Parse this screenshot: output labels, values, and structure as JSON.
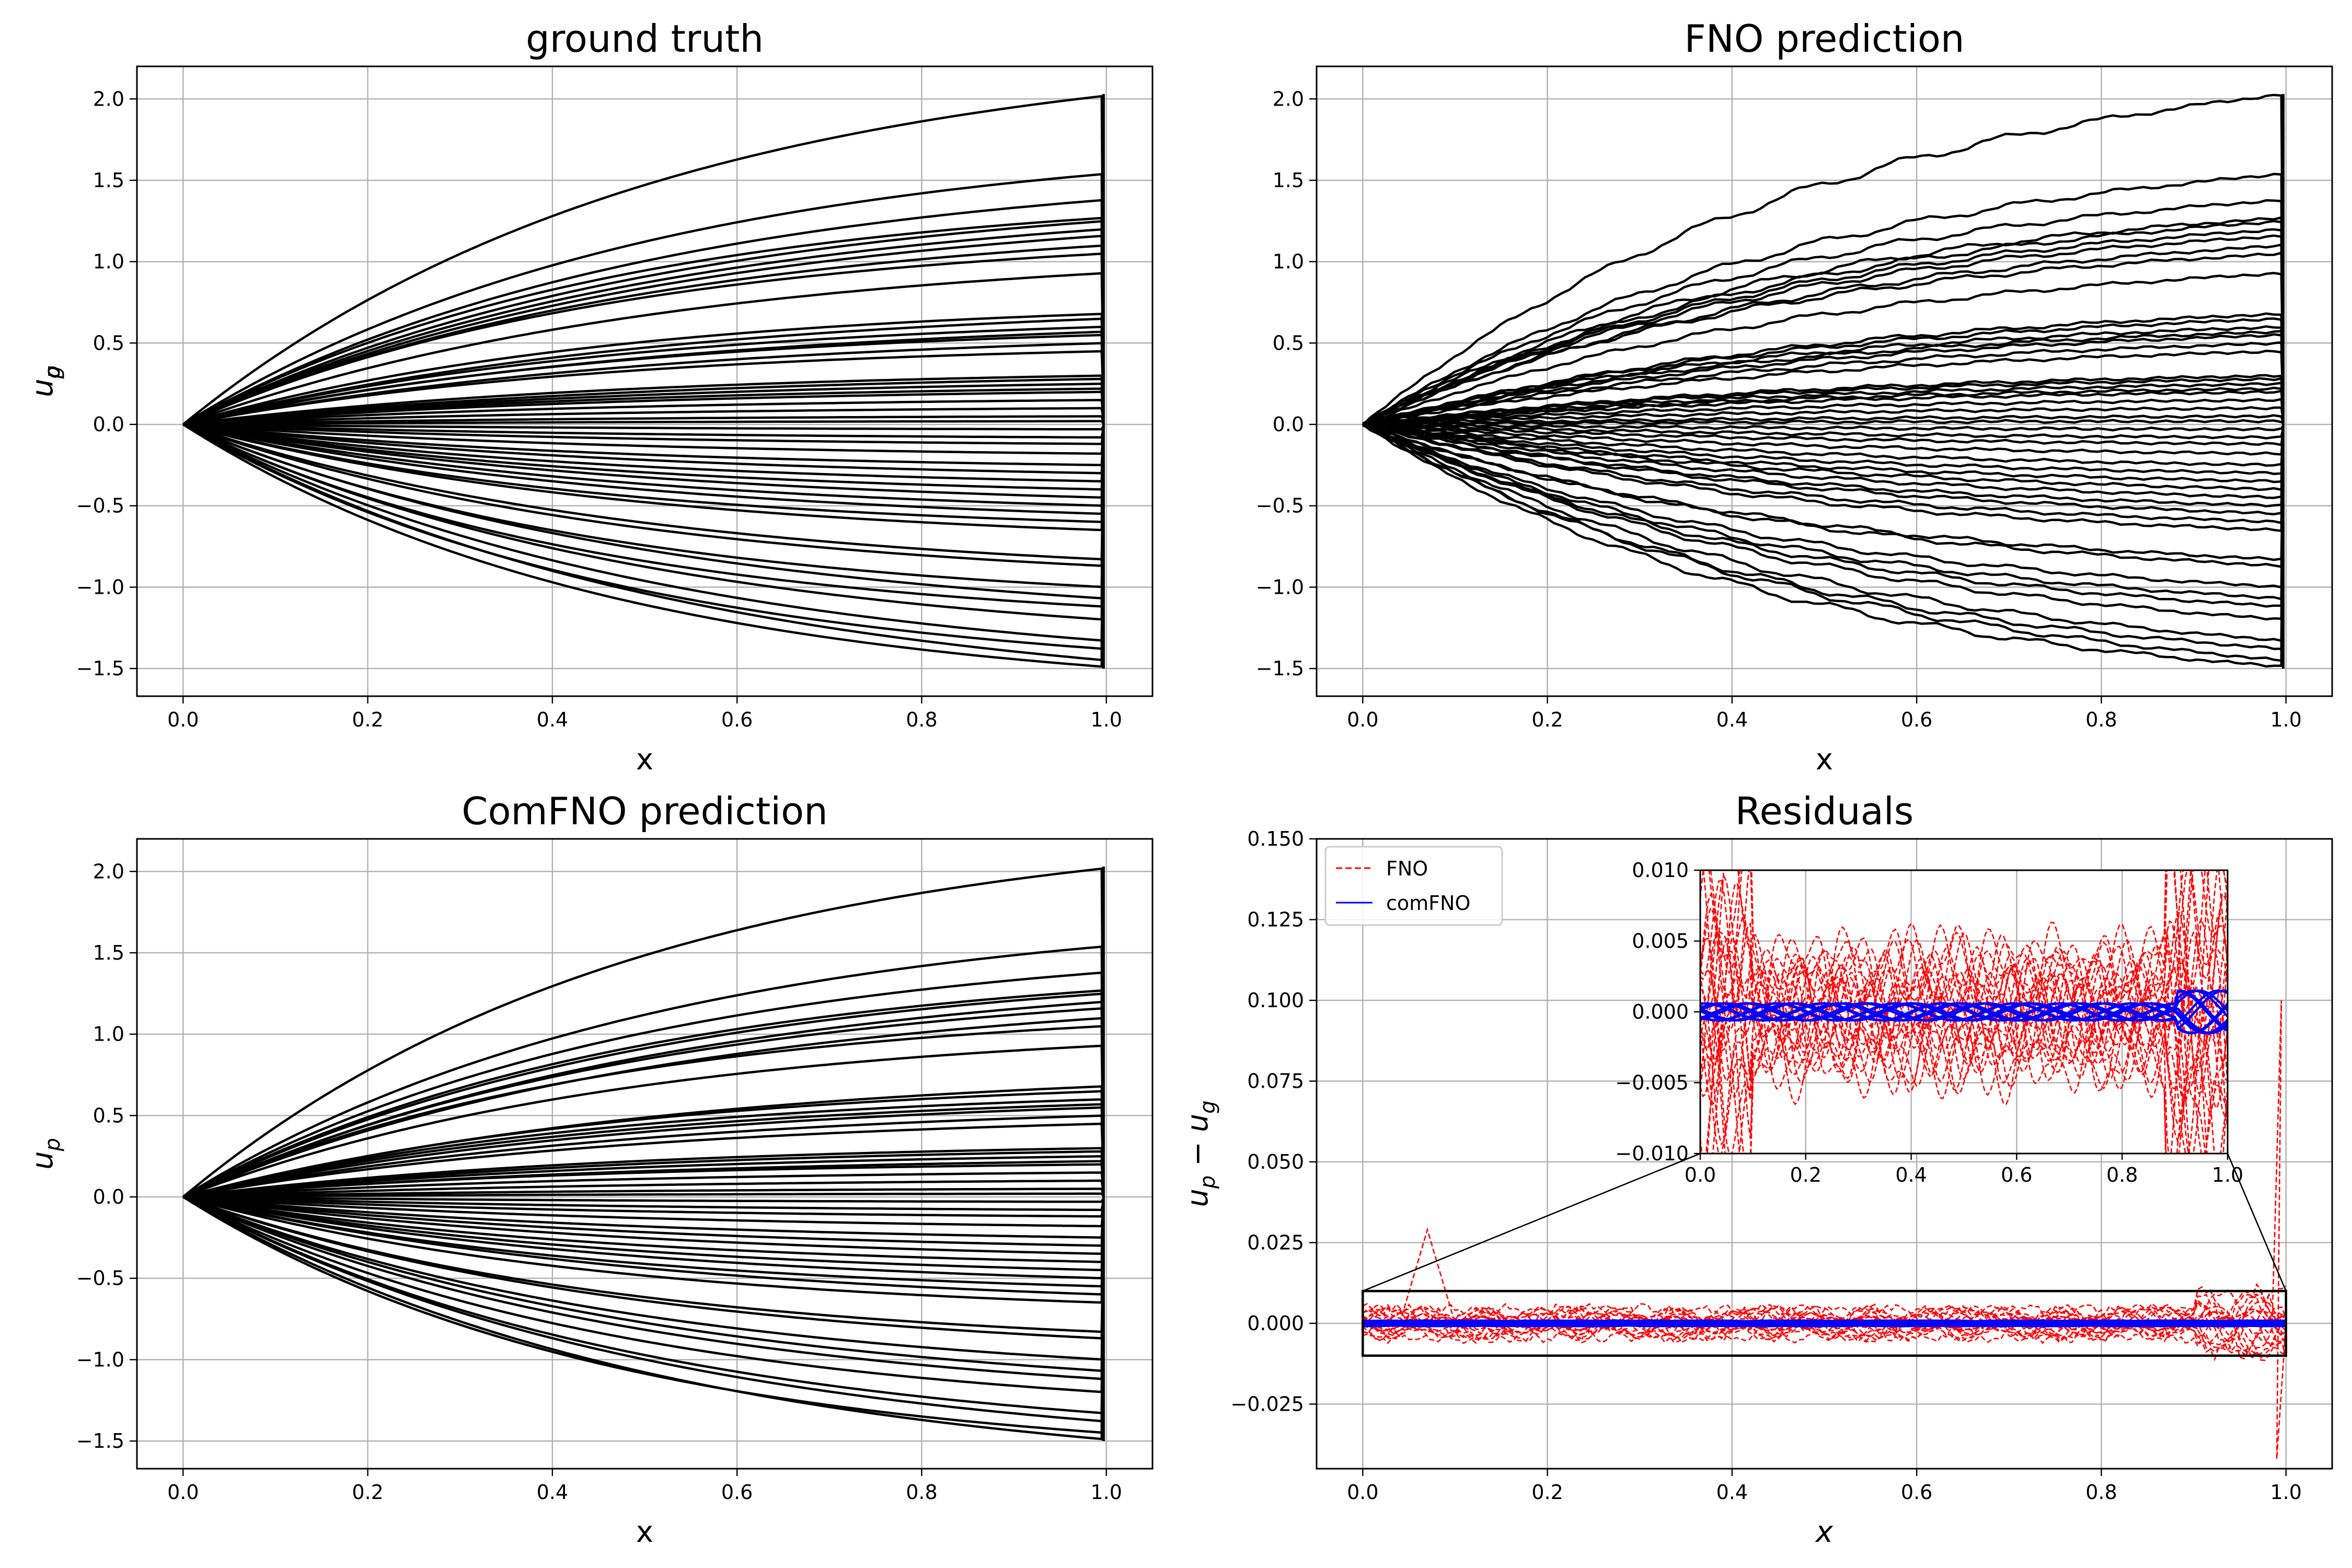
{
  "chart_data": [
    {
      "type": "line",
      "title": "ground truth",
      "xlabel": "x",
      "ylabel_main": "u",
      "ylabel_sub": "g",
      "xlim": [
        -0.05,
        1.05
      ],
      "ylim": [
        -1.67,
        2.2
      ],
      "xticks": [
        "0.0",
        "0.2",
        "0.4",
        "0.6",
        "0.8",
        "1.0"
      ],
      "yticks": [
        "2.0",
        "1.5",
        "1.0",
        "0.5",
        "0.0",
        "−0.5",
        "−1.0",
        "−1.5"
      ],
      "grid": true,
      "series_color": "#000000",
      "endpoint_values": [
        2.02,
        1.54,
        1.38,
        1.27,
        1.25,
        1.2,
        1.16,
        1.1,
        1.05,
        0.93,
        0.68,
        0.65,
        0.6,
        0.57,
        0.55,
        0.5,
        0.45,
        0.3,
        0.28,
        0.25,
        0.22,
        0.2,
        0.15,
        0.1,
        0.05,
        0.02,
        -0.03,
        -0.08,
        -0.12,
        -0.18,
        -0.25,
        -0.3,
        -0.35,
        -0.4,
        -0.45,
        -0.5,
        -0.55,
        -0.6,
        -0.65,
        -0.83,
        -0.87,
        -1.0,
        -1.07,
        -1.12,
        -1.2,
        -1.33,
        -1.38,
        -1.45,
        -1.49
      ]
    },
    {
      "type": "line",
      "title": "FNO prediction",
      "xlabel": "x",
      "ylabel_main": "u",
      "ylabel_sub": "p",
      "xlim": [
        -0.05,
        1.05
      ],
      "ylim": [
        -1.67,
        2.2
      ],
      "xticks": [
        "0.0",
        "0.2",
        "0.4",
        "0.6",
        "0.8",
        "1.0"
      ],
      "yticks": [
        "2.0",
        "1.5",
        "1.0",
        "0.5",
        "0.0",
        "−0.5",
        "−1.0",
        "−1.5"
      ],
      "grid": true,
      "series_color": "#000000",
      "endpoint_values": [
        2.03,
        1.54,
        1.38,
        1.27,
        1.25,
        1.2,
        1.16,
        1.1,
        1.05,
        0.93,
        0.68,
        0.65,
        0.6,
        0.57,
        0.55,
        0.5,
        0.45,
        0.3,
        0.28,
        0.25,
        0.22,
        0.2,
        0.15,
        0.1,
        0.05,
        0.02,
        -0.03,
        -0.08,
        -0.12,
        -0.18,
        -0.25,
        -0.3,
        -0.35,
        -0.4,
        -0.45,
        -0.5,
        -0.55,
        -0.6,
        -0.65,
        -0.83,
        -0.87,
        -1.0,
        -1.07,
        -1.12,
        -1.2,
        -1.33,
        -1.38,
        -1.45,
        -1.49
      ]
    },
    {
      "type": "line",
      "title": "ComFNO prediction",
      "xlabel": "x",
      "ylabel_main": "u",
      "ylabel_sub": "p",
      "xlim": [
        -0.05,
        1.05
      ],
      "ylim": [
        -1.67,
        2.2
      ],
      "xticks": [
        "0.0",
        "0.2",
        "0.4",
        "0.6",
        "0.8",
        "1.0"
      ],
      "yticks": [
        "2.0",
        "1.5",
        "1.0",
        "0.5",
        "0.0",
        "−0.5",
        "−1.0",
        "−1.5"
      ],
      "grid": true,
      "series_color": "#000000",
      "endpoint_values": [
        2.02,
        1.54,
        1.38,
        1.27,
        1.25,
        1.2,
        1.16,
        1.1,
        1.05,
        0.93,
        0.68,
        0.65,
        0.6,
        0.57,
        0.55,
        0.5,
        0.45,
        0.3,
        0.28,
        0.25,
        0.22,
        0.2,
        0.15,
        0.1,
        0.05,
        0.02,
        -0.03,
        -0.08,
        -0.12,
        -0.18,
        -0.25,
        -0.3,
        -0.35,
        -0.4,
        -0.45,
        -0.5,
        -0.55,
        -0.6,
        -0.65,
        -0.83,
        -0.87,
        -1.0,
        -1.07,
        -1.12,
        -1.2,
        -1.33,
        -1.38,
        -1.45,
        -1.49
      ]
    },
    {
      "type": "line",
      "title": "Residuals",
      "xlabel": "x",
      "ylabel_main": "u",
      "ylabel_sub": "p",
      "ylabel_mid": " − u",
      "ylabel_sub2": "g",
      "xlim": [
        -0.05,
        1.05
      ],
      "ylim": [
        -0.045,
        0.15
      ],
      "xticks": [
        "0.0",
        "0.2",
        "0.4",
        "0.6",
        "0.8",
        "1.0"
      ],
      "yticks": [
        "0.150",
        "0.125",
        "0.100",
        "0.075",
        "0.050",
        "0.025",
        "0.000",
        "−0.025"
      ],
      "grid": true,
      "legend": {
        "placement": "upper-left",
        "entries": [
          {
            "label": "FNO",
            "color": "#ff0000",
            "style": "dashed"
          },
          {
            "label": "comFNO",
            "color": "#0000ff",
            "style": "solid"
          }
        ]
      },
      "zoom_box": {
        "x": [
          0.0,
          1.0
        ],
        "y": [
          -0.01,
          0.01
        ]
      },
      "inset": {
        "xlim": [
          0.0,
          1.0
        ],
        "ylim": [
          -0.01,
          0.01
        ],
        "xticks": [
          "0.0",
          "0.2",
          "0.4",
          "0.6",
          "0.8",
          "1.0"
        ],
        "yticks": [
          "0.010",
          "0.005",
          "0.000",
          "−0.005",
          "−0.010"
        ]
      },
      "notable_points": {
        "FNO_spike_near_end": {
          "x": 0.995,
          "y": 0.1
        },
        "FNO_min_near_end": {
          "x": 0.995,
          "y": -0.042
        },
        "FNO_peak_near_start": {
          "x": 0.07,
          "y": 0.029
        }
      }
    }
  ]
}
